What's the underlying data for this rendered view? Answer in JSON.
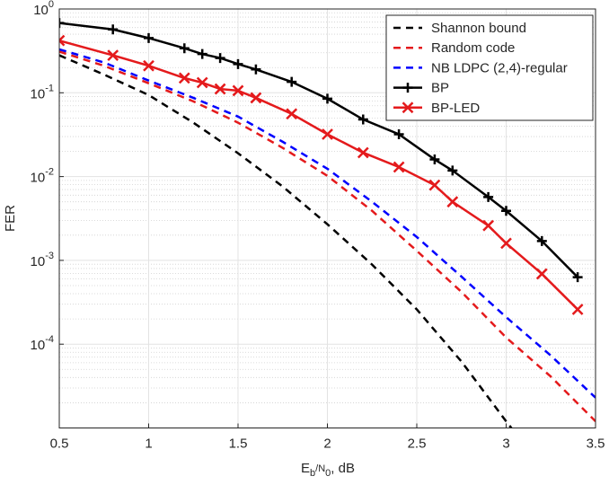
{
  "chart_data": {
    "type": "line",
    "xlabel": "E_{b}/N_{0}, dB",
    "ylabel": "FER",
    "log_y": true,
    "grid": true,
    "minor_grid": true,
    "legend": "upper right",
    "xlim": [
      0.5,
      3.5
    ],
    "xticks": [
      0.5,
      1,
      1.5,
      2,
      2.5,
      3,
      3.5
    ],
    "ylim": [
      1e-05,
      1
    ],
    "yticks": [
      {
        "value": 1,
        "label": "10^{0}"
      },
      {
        "value": 0.1,
        "label": "10^{-1}"
      },
      {
        "value": 0.01,
        "label": "10^{-2}"
      },
      {
        "value": 0.001,
        "label": "10^{-3}"
      },
      {
        "value": 0.0001,
        "label": "10^{-4}"
      }
    ],
    "series": [
      {
        "name": "Shannon bound",
        "color": "#000000",
        "dashed": true,
        "x": [
          0.5,
          0.75,
          1.0,
          1.25,
          1.5,
          1.75,
          2.0,
          2.25,
          2.5,
          2.75,
          3.0,
          3.25
        ],
        "values": [
          0.28,
          0.165,
          0.094,
          0.044,
          0.019,
          0.0076,
          0.0027,
          0.00089,
          0.00026,
          6.2e-05,
          1.2e-05,
          2.5e-06
        ]
      },
      {
        "name": "Random code",
        "color": "#e41a1c",
        "dashed": true,
        "x": [
          0.5,
          0.75,
          1.0,
          1.25,
          1.5,
          1.75,
          2.0,
          2.25,
          2.5,
          2.75,
          3.0,
          3.25,
          3.5
        ],
        "values": [
          0.31,
          0.21,
          0.13,
          0.079,
          0.044,
          0.022,
          0.0102,
          0.0039,
          0.0013,
          0.00042,
          0.00012,
          4.1e-05,
          1.2e-05
        ]
      },
      {
        "name": "NB LDPC (2,4)-regular",
        "color": "#0000ff",
        "dashed": true,
        "x": [
          0.5,
          0.75,
          1.0,
          1.25,
          1.5,
          1.75,
          2.0,
          2.25,
          2.5,
          2.75,
          3.0,
          3.25,
          3.5
        ],
        "values": [
          0.33,
          0.23,
          0.14,
          0.087,
          0.052,
          0.026,
          0.0124,
          0.005,
          0.0019,
          0.00064,
          0.00021,
          7.3e-05,
          2.3e-05
        ]
      },
      {
        "name": "BP",
        "color": "#000000",
        "marker": "+",
        "x": [
          0.5,
          0.8,
          1.0,
          1.2,
          1.3,
          1.4,
          1.5,
          1.6,
          1.8,
          2.0,
          2.2,
          2.4,
          2.6,
          2.7,
          2.9,
          3.0,
          3.2,
          3.4
        ],
        "values": [
          0.68,
          0.57,
          0.45,
          0.34,
          0.29,
          0.26,
          0.22,
          0.19,
          0.135,
          0.085,
          0.048,
          0.032,
          0.016,
          0.0118,
          0.0057,
          0.0039,
          0.0017,
          0.00063
        ]
      },
      {
        "name": "BP-LED",
        "color": "#e41a1c",
        "marker": "x",
        "x": [
          0.5,
          0.8,
          1.0,
          1.2,
          1.3,
          1.4,
          1.5,
          1.6,
          1.8,
          2.0,
          2.2,
          2.4,
          2.6,
          2.7,
          2.9,
          3.0,
          3.2,
          3.4
        ],
        "values": [
          0.42,
          0.28,
          0.21,
          0.15,
          0.132,
          0.111,
          0.106,
          0.087,
          0.056,
          0.032,
          0.0193,
          0.013,
          0.0079,
          0.005,
          0.0026,
          0.0016,
          0.00069,
          0.00026
        ]
      }
    ]
  }
}
